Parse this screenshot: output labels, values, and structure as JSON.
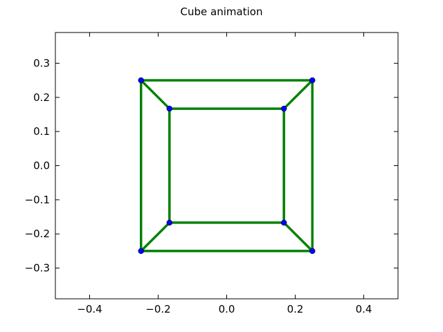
{
  "chart_data": {
    "type": "line",
    "title": "Cube animation",
    "xlabel": "",
    "ylabel": "",
    "xlim": [
      -0.5,
      0.5
    ],
    "ylim": [
      -0.39,
      0.39
    ],
    "x_ticks": [
      -0.4,
      -0.2,
      0.0,
      0.2,
      0.4
    ],
    "x_tick_labels": [
      "−0.4",
      "−0.2",
      "0.0",
      "0.2",
      "0.4"
    ],
    "y_ticks": [
      0.3,
      0.2,
      0.1,
      0.0,
      -0.1,
      -0.2,
      -0.3
    ],
    "y_tick_labels": [
      "0.3",
      "0.2",
      "0.1",
      "0.0",
      "−0.1",
      "−0.2",
      "−0.3"
    ],
    "grid": false,
    "legend": "none",
    "edge_color": "#008000",
    "vertex_color": "#0000ff",
    "vertices": [
      {
        "x": -0.25,
        "y": 0.25
      },
      {
        "x": 0.25,
        "y": 0.25
      },
      {
        "x": 0.25,
        "y": -0.25
      },
      {
        "x": -0.25,
        "y": -0.25
      },
      {
        "x": -0.167,
        "y": 0.167
      },
      {
        "x": 0.167,
        "y": 0.167
      },
      {
        "x": 0.167,
        "y": -0.167
      },
      {
        "x": -0.167,
        "y": -0.167
      }
    ],
    "edges": [
      [
        0,
        1
      ],
      [
        1,
        2
      ],
      [
        2,
        3
      ],
      [
        3,
        0
      ],
      [
        4,
        5
      ],
      [
        5,
        6
      ],
      [
        6,
        7
      ],
      [
        7,
        4
      ],
      [
        0,
        4
      ],
      [
        1,
        5
      ],
      [
        2,
        6
      ],
      [
        3,
        7
      ]
    ]
  }
}
